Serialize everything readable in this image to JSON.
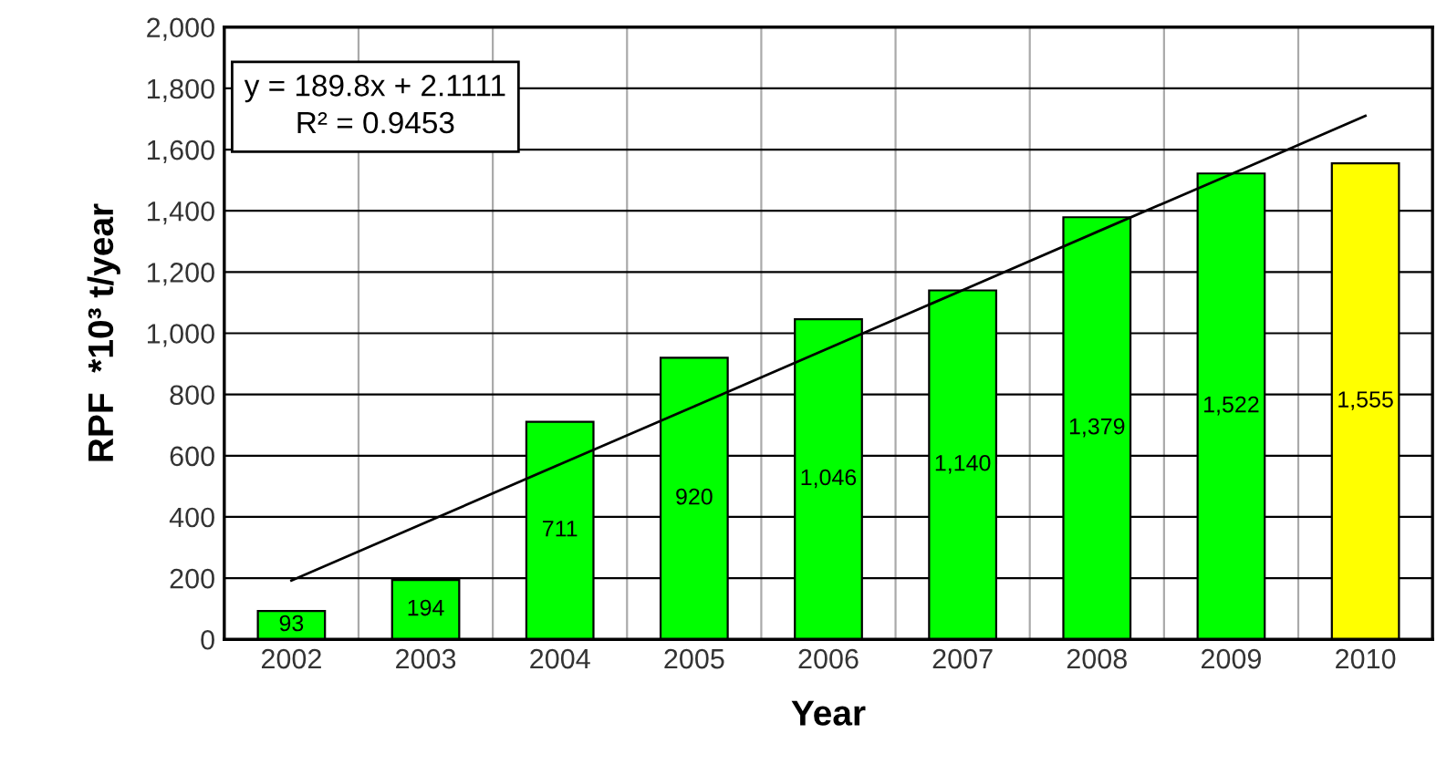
{
  "chart_data": {
    "type": "bar",
    "xlabel": "Year",
    "ylabel": "RPF  *10³ t/year",
    "categories": [
      "2002",
      "2003",
      "2004",
      "2005",
      "2006",
      "2007",
      "2008",
      "2009",
      "2010"
    ],
    "series": [
      {
        "colors": [
          "#00ff00",
          "#00ff00",
          "#00ff00",
          "#00ff00",
          "#00ff00",
          "#00ff00",
          "#00ff00",
          "#00ff00",
          "#ffff00"
        ],
        "values": [
          93,
          194,
          711,
          920,
          1046,
          1140,
          1379,
          1522,
          1555
        ],
        "value_labels": [
          "93",
          "194",
          "711",
          "920",
          "1,046",
          "1,140",
          "1,379",
          "1,522",
          "1,555"
        ]
      },
      {
        "type": "line",
        "color": "#000000",
        "values": [
          192,
          382,
          572,
          761,
          951,
          1141,
          1331,
          1520,
          1710
        ]
      }
    ],
    "annotations": [
      "y = 189.8x + 2.1111",
      "R² = 0.9453"
    ],
    "ylim": [
      0,
      2000
    ],
    "yticks": [
      {
        "value": 0,
        "label": "0"
      },
      {
        "value": 200,
        "label": "200"
      },
      {
        "value": 400,
        "label": "400"
      },
      {
        "value": 600,
        "label": "600"
      },
      {
        "value": 800,
        "label": "800"
      },
      {
        "value": 1000,
        "label": "1,000"
      },
      {
        "value": 1200,
        "label": "1,200"
      },
      {
        "value": 1400,
        "label": "1,400"
      },
      {
        "value": 1600,
        "label": "1,600"
      },
      {
        "value": 1800,
        "label": "1,800"
      },
      {
        "value": 2000,
        "label": "2,000"
      }
    ],
    "grid": true,
    "legend": false
  }
}
